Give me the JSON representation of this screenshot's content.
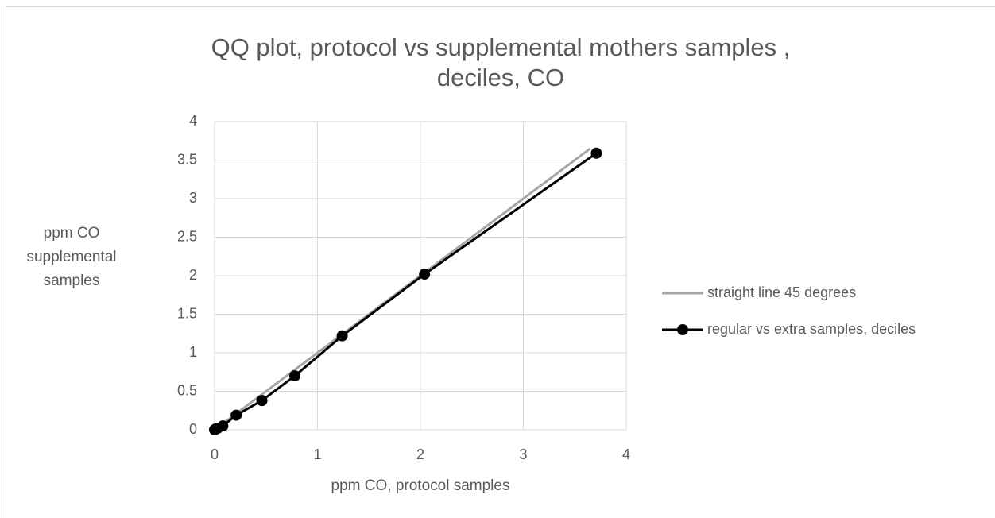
{
  "chart_data": {
    "type": "scatter",
    "title": [
      "QQ plot, protocol vs supplemental mothers samples ,",
      "deciles, CO"
    ],
    "x_label": "ppm CO, protocol samples",
    "y_label": [
      "ppm CO",
      "supplemental",
      "samples"
    ],
    "xlim": [
      0,
      4
    ],
    "xticks": [
      0,
      1,
      2,
      3,
      4
    ],
    "ylim": [
      0,
      4
    ],
    "yticks": [
      0,
      0.5,
      1,
      1.5,
      2,
      2.5,
      3,
      3.5,
      4
    ],
    "grid": true,
    "legend": "right",
    "series": [
      {
        "name": "straight line 45 degrees",
        "color": "#a6a6a6",
        "markers": false,
        "x": [
          0,
          3.65
        ],
        "values": [
          0,
          3.65
        ]
      },
      {
        "name": "regular vs extra samples, deciles",
        "color": "#000000",
        "markers": true,
        "x": [
          0,
          0.01,
          0.03,
          0.08,
          0.21,
          0.46,
          0.78,
          1.24,
          2.04,
          3.71
        ],
        "values": [
          0,
          0.01,
          0.02,
          0.05,
          0.19,
          0.38,
          0.7,
          1.22,
          2.02,
          3.59
        ]
      }
    ]
  }
}
